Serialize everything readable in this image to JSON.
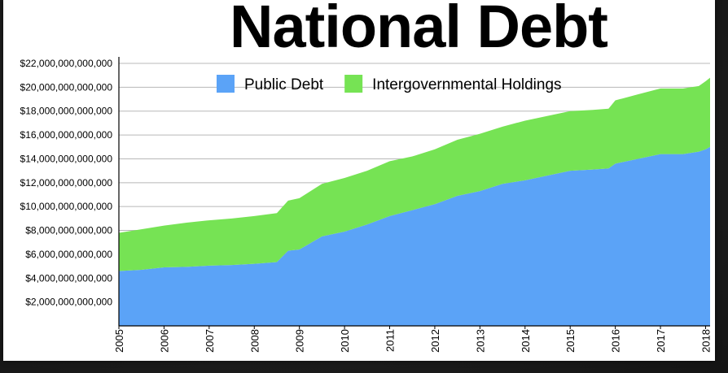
{
  "chart_data": {
    "type": "area",
    "stacked": true,
    "title": "National Debt",
    "xlabel": "",
    "ylabel": "",
    "xlim": [
      2005.0,
      2018.1
    ],
    "ylim": [
      0,
      22000000000000
    ],
    "y_ticks": [
      2000000000000,
      4000000000000,
      6000000000000,
      8000000000000,
      10000000000000,
      12000000000000,
      14000000000000,
      16000000000000,
      18000000000000,
      20000000000000,
      22000000000000
    ],
    "y_tick_labels": [
      "$2,000,000,000,000",
      "$4,000,000,000,000",
      "$6,000,000,000,000",
      "$8,000,000,000,000",
      "$10,000,000,000,000",
      "$12,000,000,000,000",
      "$14,000,000,000,000",
      "$16,000,000,000,000",
      "$18,000,000,000,000",
      "$20,000,000,000,000",
      "$22,000,000,000,000"
    ],
    "x_tick_labels": [
      "2005",
      "2006",
      "2007",
      "2008",
      "2009",
      "2010",
      "2011",
      "2012",
      "2013",
      "2014",
      "2015",
      "2016",
      "2017",
      "2018"
    ],
    "grid": "horizontal",
    "legend": "top",
    "x": [
      2005.0,
      2005.5,
      2006.0,
      2006.5,
      2007.0,
      2007.5,
      2008.0,
      2008.5,
      2008.75,
      2009.0,
      2009.5,
      2010.0,
      2010.5,
      2011.0,
      2011.5,
      2012.0,
      2012.5,
      2013.0,
      2013.5,
      2014.0,
      2014.5,
      2015.0,
      2015.5,
      2015.85,
      2016.0,
      2016.5,
      2017.0,
      2017.5,
      2017.85,
      2018.0,
      2018.1
    ],
    "series": [
      {
        "name": "Public Debt",
        "color": "#5ba3f7",
        "values": [
          4600000000000.0,
          4700000000000.0,
          4900000000000.0,
          4950000000000.0,
          5050000000000.0,
          5100000000000.0,
          5200000000000.0,
          5350000000000.0,
          6300000000000.0,
          6400000000000.0,
          7500000000000.0,
          7900000000000.0,
          8500000000000.0,
          9200000000000.0,
          9700000000000.0,
          10200000000000.0,
          10900000000000.0,
          11300000000000.0,
          11900000000000.0,
          12200000000000.0,
          12600000000000.0,
          13000000000000.0,
          13100000000000.0,
          13200000000000.0,
          13600000000000.0,
          14000000000000.0,
          14400000000000.0,
          14400000000000.0,
          14600000000000.0,
          14800000000000.0,
          15000000000000.0
        ]
      },
      {
        "name": "Intergovernmental Holdings",
        "color": "#76e354",
        "values": [
          3200000000000.0,
          3400000000000.0,
          3500000000000.0,
          3700000000000.0,
          3800000000000.0,
          3900000000000.0,
          4000000000000.0,
          4100000000000.0,
          4200000000000.0,
          4300000000000.0,
          4400000000000.0,
          4500000000000.0,
          4500000000000.0,
          4600000000000.0,
          4500000000000.0,
          4600000000000.0,
          4700000000000.0,
          4800000000000.0,
          4800000000000.0,
          5000000000000.0,
          5000000000000.0,
          5000000000000.0,
          5000000000000.0,
          5000000000000.0,
          5300000000000.0,
          5400000000000.0,
          5500000000000.0,
          5500000000000.0,
          5500000000000.0,
          5700000000000.0,
          5800000000000.0
        ]
      }
    ]
  }
}
